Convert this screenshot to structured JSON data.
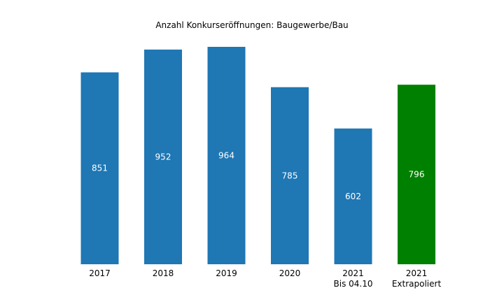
{
  "chart_data": {
    "type": "bar",
    "title": "Anzahl Konkurseröffnungen: Baugewerbe/Bau",
    "xlabel": "",
    "ylabel": "",
    "categories": [
      [
        "2017"
      ],
      [
        "2018"
      ],
      [
        "2019"
      ],
      [
        "2020"
      ],
      [
        "2021",
        "Bis 04.10"
      ],
      [
        "2021",
        "Extrapoliert"
      ]
    ],
    "values": [
      851,
      952,
      964,
      785,
      602,
      796
    ],
    "bar_colors": [
      "#1f77b4",
      "#1f77b4",
      "#1f77b4",
      "#1f77b4",
      "#1f77b4",
      "#008000"
    ],
    "data_labels": [
      "851",
      "952",
      "964",
      "785",
      "602",
      "796"
    ],
    "ylim": [
      0,
      964
    ],
    "grid": false,
    "legend": "none"
  }
}
